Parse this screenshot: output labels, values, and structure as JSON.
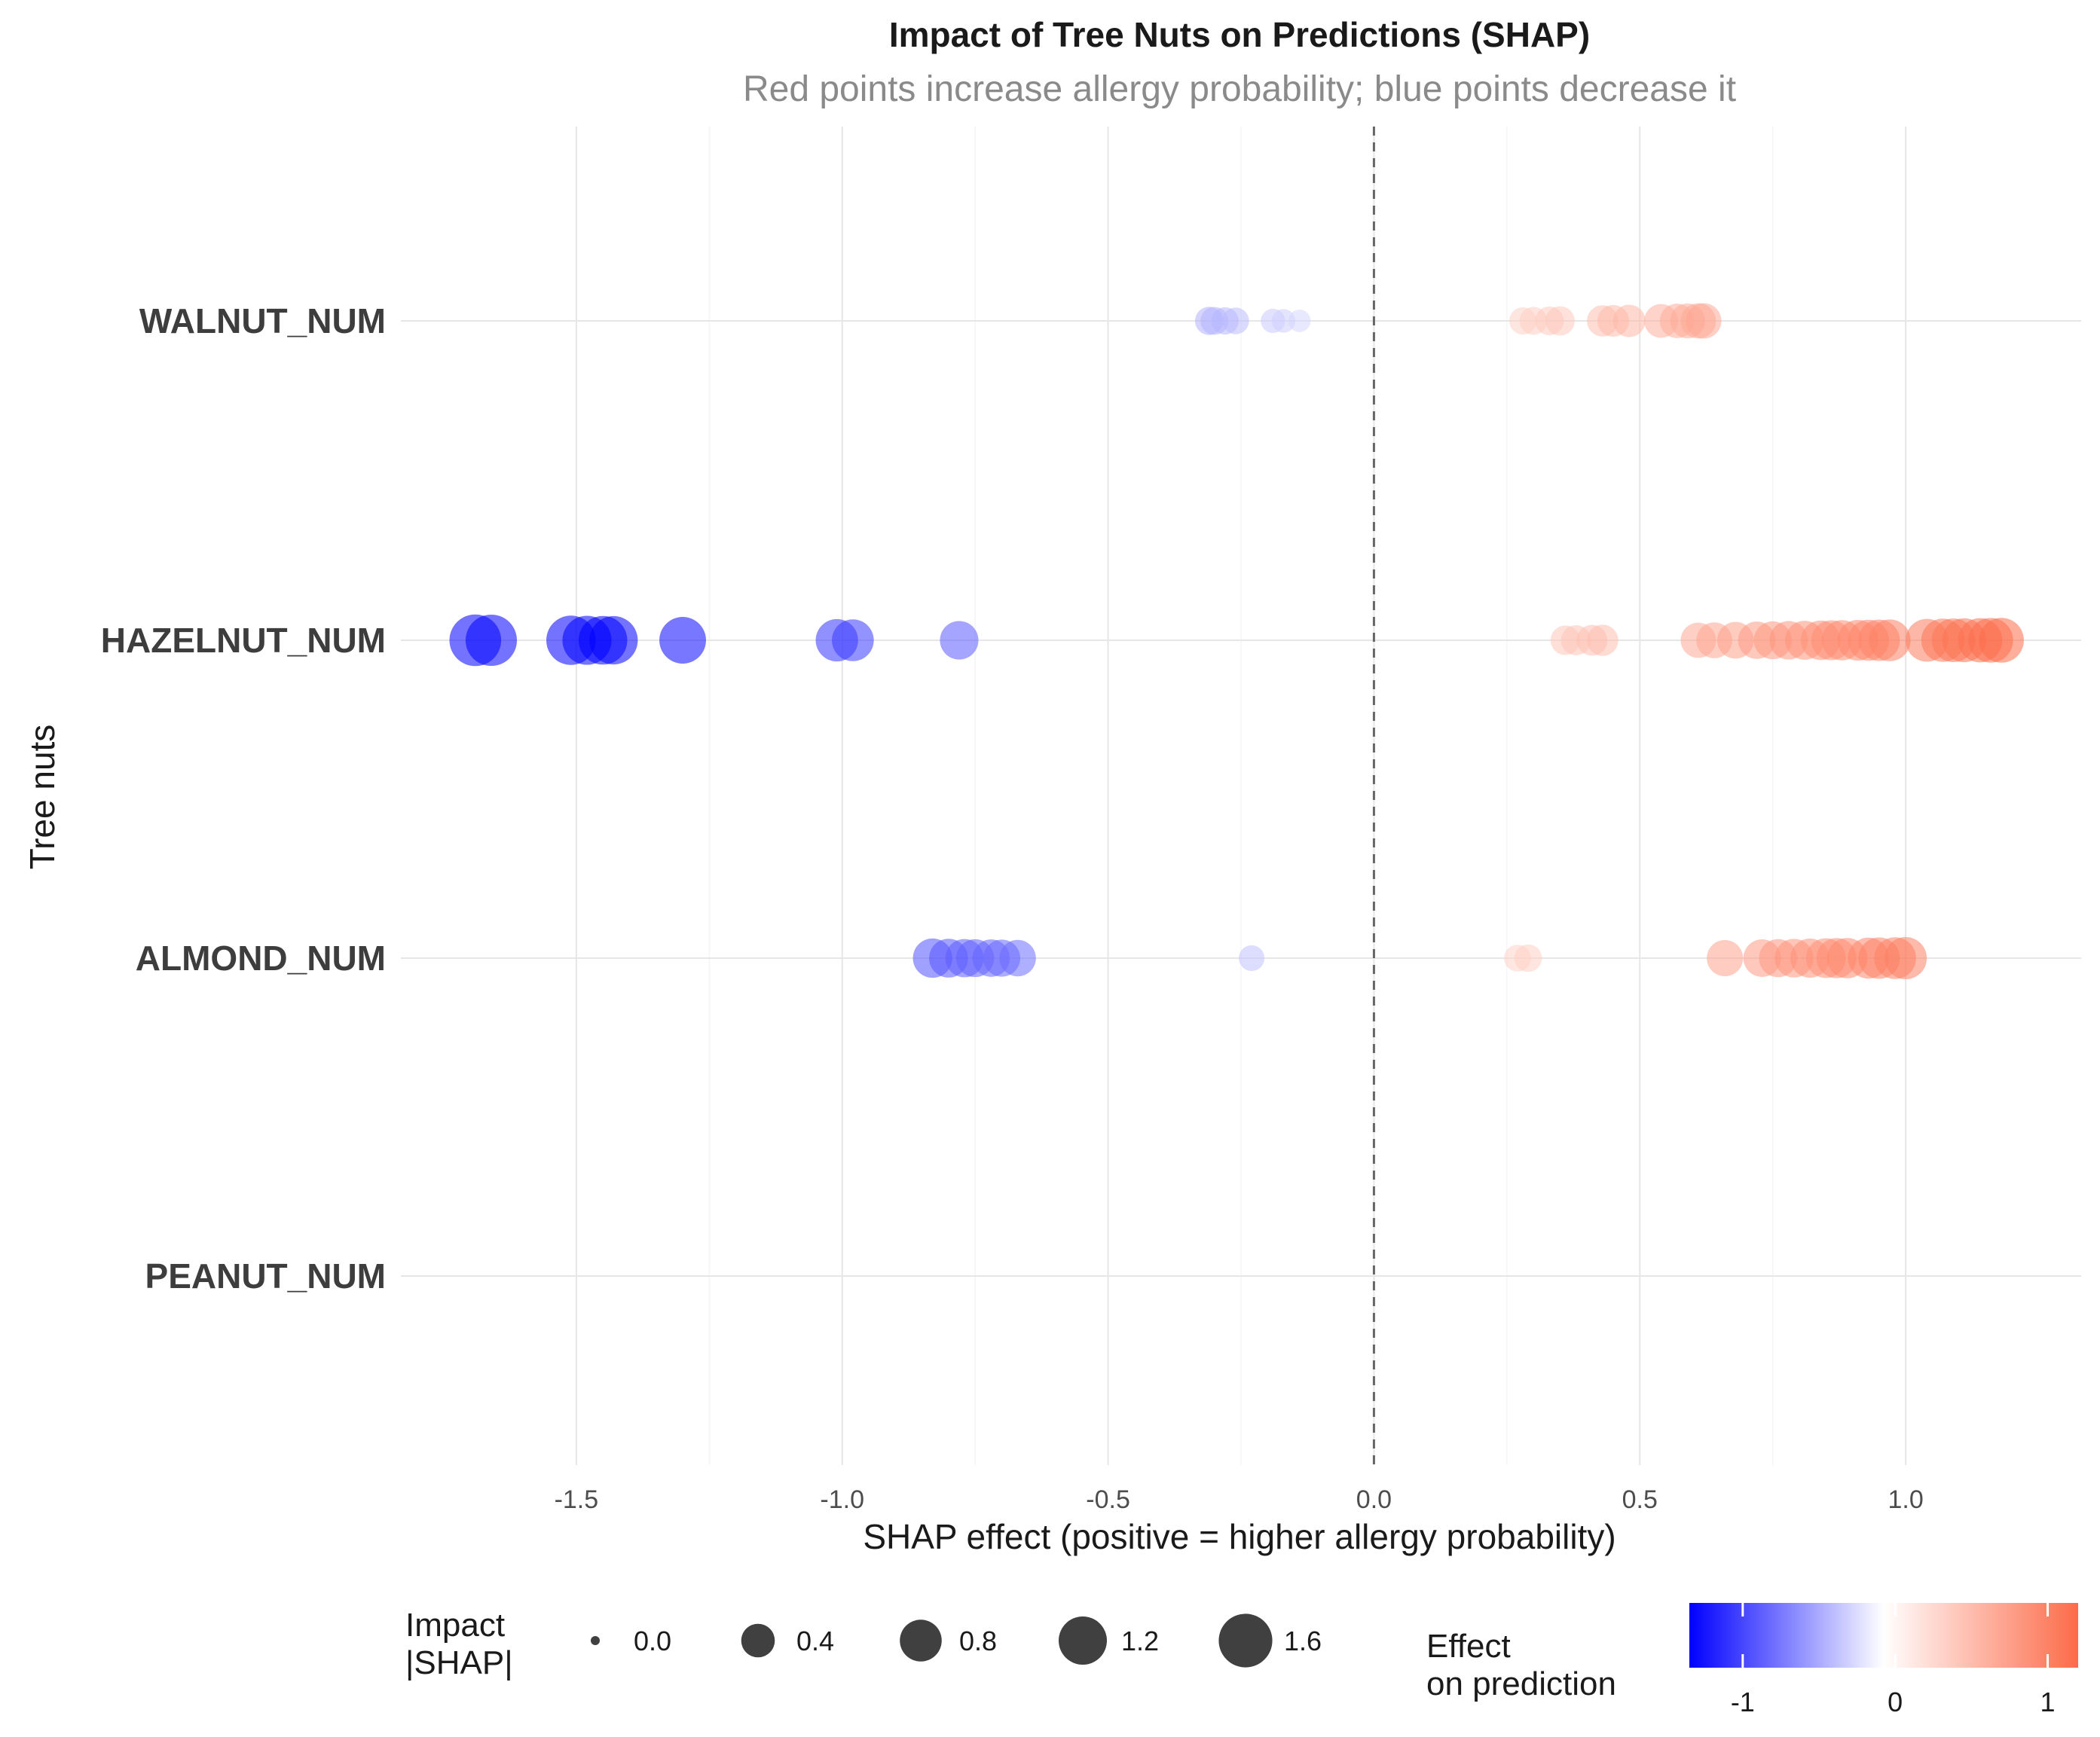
{
  "chart_data": {
    "type": "scatter",
    "title": "Impact of Tree Nuts on Predictions (SHAP)",
    "subtitle": "Red points increase allergy probability; blue points decrease it",
    "xlabel": "SHAP effect (positive = higher allergy probability)",
    "ylabel": "Tree nuts",
    "xlim": [
      -1.83,
      1.33
    ],
    "x_ticks": [
      -1.5,
      -1.0,
      -0.5,
      0.0,
      0.5,
      1.0
    ],
    "x_tick_labels": [
      "-1.5",
      "-1.0",
      "-0.5",
      "0.0",
      "0.5",
      "1.0"
    ],
    "categories": [
      "WALNUT_NUM",
      "HAZELNUT_NUM",
      "ALMOND_NUM",
      "PEANUT_NUM"
    ],
    "reference_line_x": 0,
    "series": [
      {
        "name": "WALNUT_NUM",
        "values": [
          -0.31,
          -0.3,
          -0.28,
          -0.26,
          -0.19,
          -0.17,
          -0.14,
          0.28,
          0.3,
          0.33,
          0.35,
          0.43,
          0.45,
          0.48,
          0.54,
          0.57,
          0.59,
          0.61,
          0.62
        ]
      },
      {
        "name": "HAZELNUT_NUM",
        "values": [
          -1.69,
          -1.66,
          -1.51,
          -1.48,
          -1.45,
          -1.43,
          -1.3,
          -1.01,
          -0.98,
          -0.78,
          0.36,
          0.38,
          0.41,
          0.43,
          0.61,
          0.64,
          0.68,
          0.72,
          0.75,
          0.78,
          0.81,
          0.84,
          0.86,
          0.88,
          0.91,
          0.93,
          0.95,
          0.97,
          1.04,
          1.07,
          1.09,
          1.11,
          1.14,
          1.16,
          1.18
        ]
      },
      {
        "name": "ALMOND_NUM",
        "values": [
          -0.83,
          -0.8,
          -0.77,
          -0.75,
          -0.72,
          -0.7,
          -0.67,
          -0.23,
          0.27,
          0.29,
          0.66,
          0.73,
          0.76,
          0.79,
          0.82,
          0.85,
          0.87,
          0.89,
          0.93,
          0.95,
          0.98,
          1.0
        ]
      },
      {
        "name": "PEANUT_NUM",
        "values": []
      }
    ],
    "point_opacity": 0.55,
    "color_scale": {
      "title_line1": "Effect",
      "title_line2": "on prediction",
      "low_color": "#0000ff",
      "mid_color": "#ffffff",
      "high_color": "#fc6b49",
      "range": [
        -1.35,
        1.2
      ],
      "ticks": [
        -1,
        0,
        1
      ],
      "tick_labels": [
        "-1",
        "0",
        "1"
      ]
    },
    "size_scale": {
      "title_line1": "Impact",
      "title_line2": "|SHAP|",
      "breaks": [
        0.0,
        0.4,
        0.8,
        1.2,
        1.6
      ],
      "break_labels": [
        "0.0",
        "0.4",
        "0.8",
        "1.2",
        "1.6"
      ],
      "point_color": "#404040"
    }
  }
}
